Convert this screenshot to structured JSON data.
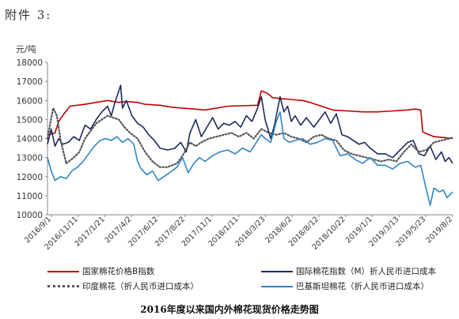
{
  "page_heading": "附件 3:",
  "caption": "2016年度以来国内外棉花现货价格走势图",
  "chart_data": {
    "type": "line",
    "ylabel": "元/吨",
    "ylim": [
      10000,
      18000
    ],
    "yticks": [
      "18000",
      "17000",
      "16000",
      "15000",
      "14000",
      "13000",
      "12000",
      "11000",
      "10000"
    ],
    "x_tick_labels": [
      "2016/9/1",
      "2016/11/11",
      "2017/1/21",
      "2017/4/2",
      "2017/6/12",
      "2017/8/22",
      "2017/11/1",
      "2018/1/11",
      "2018/3/23",
      "2018/6/2",
      "2018/8/12",
      "2018/10/22",
      "2019/1/1",
      "2019/3/13",
      "2019/5/23",
      "2019/8/2"
    ],
    "x_range_days": [
      0,
      1080
    ],
    "series": [
      {
        "name": "国家棉花价格B指数",
        "color": "#c00000",
        "style": "solid",
        "points": [
          [
            0,
            14200
          ],
          [
            20,
            14300
          ],
          [
            30,
            14900
          ],
          [
            40,
            15200
          ],
          [
            60,
            15700
          ],
          [
            80,
            15750
          ],
          [
            100,
            15800
          ],
          [
            130,
            15900
          ],
          [
            160,
            16000
          ],
          [
            190,
            15900
          ],
          [
            210,
            15950
          ],
          [
            240,
            15900
          ],
          [
            260,
            15800
          ],
          [
            300,
            15750
          ],
          [
            330,
            15650
          ],
          [
            360,
            15600
          ],
          [
            390,
            15550
          ],
          [
            420,
            15500
          ],
          [
            450,
            15600
          ],
          [
            480,
            15700
          ],
          [
            560,
            15750
          ],
          [
            570,
            16500
          ],
          [
            585,
            16400
          ],
          [
            600,
            16150
          ],
          [
            620,
            16100
          ],
          [
            650,
            16050
          ],
          [
            680,
            16000
          ],
          [
            700,
            15900
          ],
          [
            730,
            15700
          ],
          [
            760,
            15500
          ],
          [
            800,
            15450
          ],
          [
            840,
            15400
          ],
          [
            880,
            15400
          ],
          [
            920,
            15450
          ],
          [
            960,
            15500
          ],
          [
            980,
            15550
          ],
          [
            995,
            15500
          ],
          [
            1000,
            14350
          ],
          [
            1030,
            14100
          ],
          [
            1060,
            14050
          ],
          [
            1080,
            14000
          ]
        ]
      },
      {
        "name": "国际棉花指数（M）折人民币进口成本",
        "color": "#1f2a5c",
        "style": "solid",
        "points": [
          [
            0,
            13700
          ],
          [
            10,
            14500
          ],
          [
            20,
            13600
          ],
          [
            30,
            14000
          ],
          [
            40,
            13700
          ],
          [
            55,
            13800
          ],
          [
            70,
            14100
          ],
          [
            85,
            13900
          ],
          [
            100,
            14700
          ],
          [
            115,
            14500
          ],
          [
            130,
            15000
          ],
          [
            145,
            15400
          ],
          [
            160,
            15700
          ],
          [
            170,
            15200
          ],
          [
            180,
            15900
          ],
          [
            190,
            16500
          ],
          [
            195,
            16800
          ],
          [
            200,
            15600
          ],
          [
            210,
            16000
          ],
          [
            225,
            15200
          ],
          [
            240,
            14800
          ],
          [
            255,
            14600
          ],
          [
            270,
            14200
          ],
          [
            285,
            13900
          ],
          [
            300,
            13500
          ],
          [
            320,
            13400
          ],
          [
            340,
            13500
          ],
          [
            355,
            13800
          ],
          [
            370,
            13300
          ],
          [
            380,
            14300
          ],
          [
            395,
            15000
          ],
          [
            410,
            14100
          ],
          [
            425,
            14600
          ],
          [
            440,
            15100
          ],
          [
            455,
            14500
          ],
          [
            470,
            14800
          ],
          [
            485,
            14700
          ],
          [
            500,
            14900
          ],
          [
            515,
            14600
          ],
          [
            530,
            15200
          ],
          [
            545,
            14900
          ],
          [
            560,
            15600
          ],
          [
            570,
            16200
          ],
          [
            580,
            15000
          ],
          [
            595,
            14000
          ],
          [
            605,
            14700
          ],
          [
            620,
            16200
          ],
          [
            630,
            15400
          ],
          [
            640,
            15700
          ],
          [
            650,
            14900
          ],
          [
            660,
            15200
          ],
          [
            675,
            14700
          ],
          [
            690,
            15100
          ],
          [
            710,
            14600
          ],
          [
            725,
            15000
          ],
          [
            740,
            15400
          ],
          [
            755,
            14800
          ],
          [
            770,
            15300
          ],
          [
            785,
            14200
          ],
          [
            800,
            14100
          ],
          [
            815,
            13900
          ],
          [
            830,
            13700
          ],
          [
            845,
            13800
          ],
          [
            860,
            13500
          ],
          [
            880,
            13200
          ],
          [
            900,
            13200
          ],
          [
            920,
            13000
          ],
          [
            940,
            13400
          ],
          [
            960,
            13800
          ],
          [
            975,
            13900
          ],
          [
            990,
            13200
          ],
          [
            1005,
            13100
          ],
          [
            1020,
            13600
          ],
          [
            1035,
            12900
          ],
          [
            1050,
            13300
          ],
          [
            1060,
            12800
          ],
          [
            1070,
            13000
          ],
          [
            1080,
            12700
          ]
        ]
      },
      {
        "name": "印度棉花（折人民币进口成本）",
        "color": "#555555",
        "style": "dotted",
        "points": [
          [
            0,
            14000
          ],
          [
            15,
            15600
          ],
          [
            25,
            15200
          ],
          [
            35,
            13900
          ],
          [
            50,
            12700
          ],
          [
            70,
            13000
          ],
          [
            85,
            13300
          ],
          [
            100,
            14000
          ],
          [
            115,
            14400
          ],
          [
            130,
            14800
          ],
          [
            145,
            15000
          ],
          [
            160,
            15200
          ],
          [
            175,
            15100
          ],
          [
            190,
            15000
          ],
          [
            205,
            14600
          ],
          [
            220,
            14300
          ],
          [
            240,
            14000
          ],
          [
            260,
            13300
          ],
          [
            280,
            12800
          ],
          [
            300,
            12500
          ],
          [
            320,
            12500
          ],
          [
            345,
            12700
          ],
          [
            360,
            13100
          ],
          [
            380,
            13800
          ],
          [
            395,
            13600
          ],
          [
            410,
            13800
          ],
          [
            430,
            14000
          ],
          [
            450,
            14100
          ],
          [
            470,
            14200
          ],
          [
            490,
            14300
          ],
          [
            510,
            14100
          ],
          [
            530,
            14300
          ],
          [
            550,
            14000
          ],
          [
            570,
            14500
          ],
          [
            590,
            14300
          ],
          [
            610,
            14200
          ],
          [
            630,
            14300
          ],
          [
            650,
            14100
          ],
          [
            670,
            14000
          ],
          [
            690,
            13800
          ],
          [
            710,
            14100
          ],
          [
            730,
            14200
          ],
          [
            750,
            14000
          ],
          [
            770,
            13900
          ],
          [
            790,
            13400
          ],
          [
            810,
            13200
          ],
          [
            830,
            13100
          ],
          [
            850,
            13000
          ],
          [
            870,
            12900
          ],
          [
            890,
            12800
          ],
          [
            910,
            12900
          ],
          [
            930,
            12800
          ],
          [
            950,
            13300
          ],
          [
            970,
            13700
          ],
          [
            990,
            13300
          ],
          [
            1010,
            13400
          ],
          [
            1030,
            13800
          ],
          [
            1050,
            13900
          ],
          [
            1080,
            14050
          ]
        ]
      },
      {
        "name": "巴基斯坦棉花（折人民币进口成本）",
        "color": "#2e86c1",
        "style": "solid",
        "points": [
          [
            0,
            13000
          ],
          [
            10,
            12300
          ],
          [
            20,
            11800
          ],
          [
            35,
            12000
          ],
          [
            50,
            11900
          ],
          [
            65,
            12300
          ],
          [
            80,
            12500
          ],
          [
            95,
            12800
          ],
          [
            110,
            13200
          ],
          [
            125,
            13600
          ],
          [
            140,
            13900
          ],
          [
            155,
            14000
          ],
          [
            170,
            13900
          ],
          [
            185,
            14100
          ],
          [
            200,
            13800
          ],
          [
            215,
            14000
          ],
          [
            230,
            13700
          ],
          [
            240,
            12800
          ],
          [
            250,
            12400
          ],
          [
            265,
            12100
          ],
          [
            280,
            12300
          ],
          [
            295,
            11800
          ],
          [
            310,
            12000
          ],
          [
            325,
            12200
          ],
          [
            345,
            12500
          ],
          [
            360,
            13000
          ],
          [
            375,
            12200
          ],
          [
            390,
            12700
          ],
          [
            405,
            13000
          ],
          [
            420,
            12800
          ],
          [
            440,
            13100
          ],
          [
            460,
            13300
          ],
          [
            480,
            13400
          ],
          [
            500,
            13200
          ],
          [
            520,
            13500
          ],
          [
            540,
            13300
          ],
          [
            560,
            13900
          ],
          [
            570,
            14200
          ],
          [
            580,
            14000
          ],
          [
            595,
            13800
          ],
          [
            610,
            14900
          ],
          [
            620,
            15400
          ],
          [
            630,
            14000
          ],
          [
            645,
            13800
          ],
          [
            660,
            13900
          ],
          [
            680,
            14000
          ],
          [
            700,
            13700
          ],
          [
            720,
            13800
          ],
          [
            740,
            14000
          ],
          [
            760,
            13900
          ],
          [
            780,
            13100
          ],
          [
            800,
            13200
          ],
          [
            820,
            12900
          ],
          [
            840,
            12700
          ],
          [
            860,
            13000
          ],
          [
            880,
            12600
          ],
          [
            900,
            12600
          ],
          [
            920,
            12400
          ],
          [
            940,
            12700
          ],
          [
            960,
            12800
          ],
          [
            980,
            12500
          ],
          [
            995,
            12600
          ],
          [
            1010,
            11300
          ],
          [
            1020,
            10500
          ],
          [
            1030,
            11400
          ],
          [
            1045,
            11200
          ],
          [
            1055,
            11300
          ],
          [
            1065,
            10900
          ],
          [
            1080,
            11200
          ]
        ]
      }
    ]
  }
}
